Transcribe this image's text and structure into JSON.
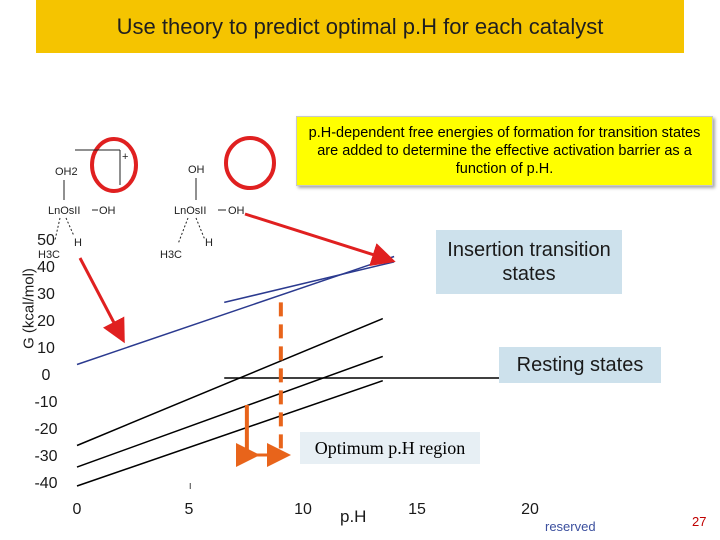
{
  "slide": {
    "title": "Use theory to predict optimal p.H for each catalyst",
    "callout": "p.H-dependent free energies of formation for transition states are added to determine the effective activation barrier as a function of p.H.",
    "insertion_label": "Insertion transition states",
    "resting_label": "Resting states",
    "optimum_label": "Optimum p.H region",
    "footer_text": "reserved",
    "page_number": "27"
  },
  "structures": {
    "left": {
      "top": "OH2",
      "center": "LnOsII",
      "right": "OH",
      "bottom_left": "H3C",
      "bottom_right": "H",
      "charge": "+"
    },
    "right": {
      "top": "OH",
      "center": "LnOsII",
      "right": "OH",
      "bottom_left": "H3C",
      "bottom_right": "H"
    }
  },
  "colors": {
    "title_bg": "#f5c400",
    "callout_bg": "#ffff00",
    "label_box_bg": "#cde1ec",
    "insertion_line": "#2b3a8f",
    "resting_line": "#000000",
    "optimum_markers": "#e8641b",
    "arrows": "#e02020",
    "circles": "#e02020"
  },
  "chart_data": {
    "type": "line",
    "xlabel": "p.H",
    "ylabel": "G (kcal/mol)",
    "xlim": [
      0,
      20
    ],
    "ylim": [
      -40,
      50
    ],
    "x_ticks": [
      "0",
      "5",
      "10",
      "15",
      "20"
    ],
    "y_ticks": [
      "50",
      "40",
      "30",
      "20",
      "10",
      "0",
      "-10",
      "-20",
      "-30",
      "-40"
    ],
    "series": [
      {
        "group": "insertion",
        "x": [
          0,
          14
        ],
        "y": [
          5,
          45
        ]
      },
      {
        "group": "insertion",
        "x": [
          6.5,
          14
        ],
        "y": [
          28,
          43
        ]
      },
      {
        "group": "resting",
        "x": [
          0,
          13.5
        ],
        "y": [
          -25,
          22
        ]
      },
      {
        "group": "resting",
        "x": [
          0,
          13.5
        ],
        "y": [
          -33,
          8
        ]
      },
      {
        "group": "resting",
        "x": [
          0,
          13.5
        ],
        "y": [
          -40,
          -1
        ]
      },
      {
        "group": "resting",
        "x": [
          6.5,
          19
        ],
        "y": [
          0,
          0
        ]
      }
    ],
    "optimum_range": [
      7.5,
      9
    ]
  }
}
